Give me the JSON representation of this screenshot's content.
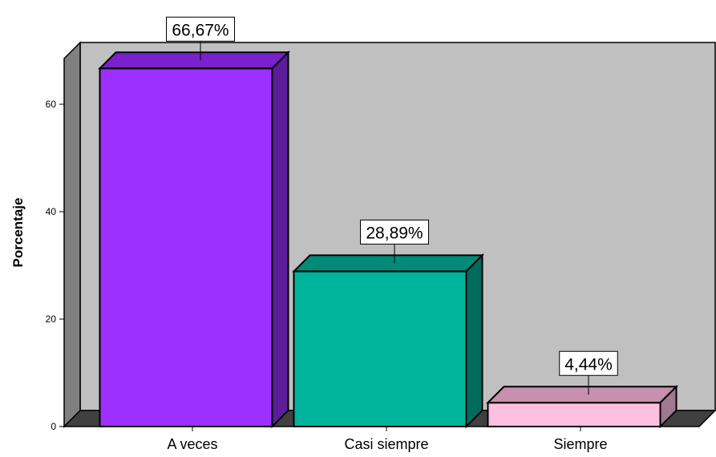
{
  "chart_data": {
    "type": "bar",
    "title": "",
    "xlabel": "",
    "ylabel": "Porcentaje",
    "ylim": [
      0,
      70
    ],
    "yticks": [
      0,
      20,
      40,
      60
    ],
    "grid": false,
    "categories": [
      "A veces",
      "Casi siempre",
      "Siempre"
    ],
    "values": [
      66.67,
      28.89,
      4.44
    ],
    "data_labels": [
      "66,67%",
      "28,89%",
      "4,44%"
    ],
    "colors": {
      "bars": [
        "#9b30ff",
        "#00b39b",
        "#ffbfe0"
      ],
      "bar_tops": [
        "#7a20cc",
        "#008a78",
        "#c78fb0"
      ],
      "bar_sides": [
        "#5d1c99",
        "#006b5d",
        "#a07890"
      ],
      "plot_back": "#c0c0c0",
      "plot_wall": "#808080",
      "plot_floor": "#404040"
    }
  }
}
